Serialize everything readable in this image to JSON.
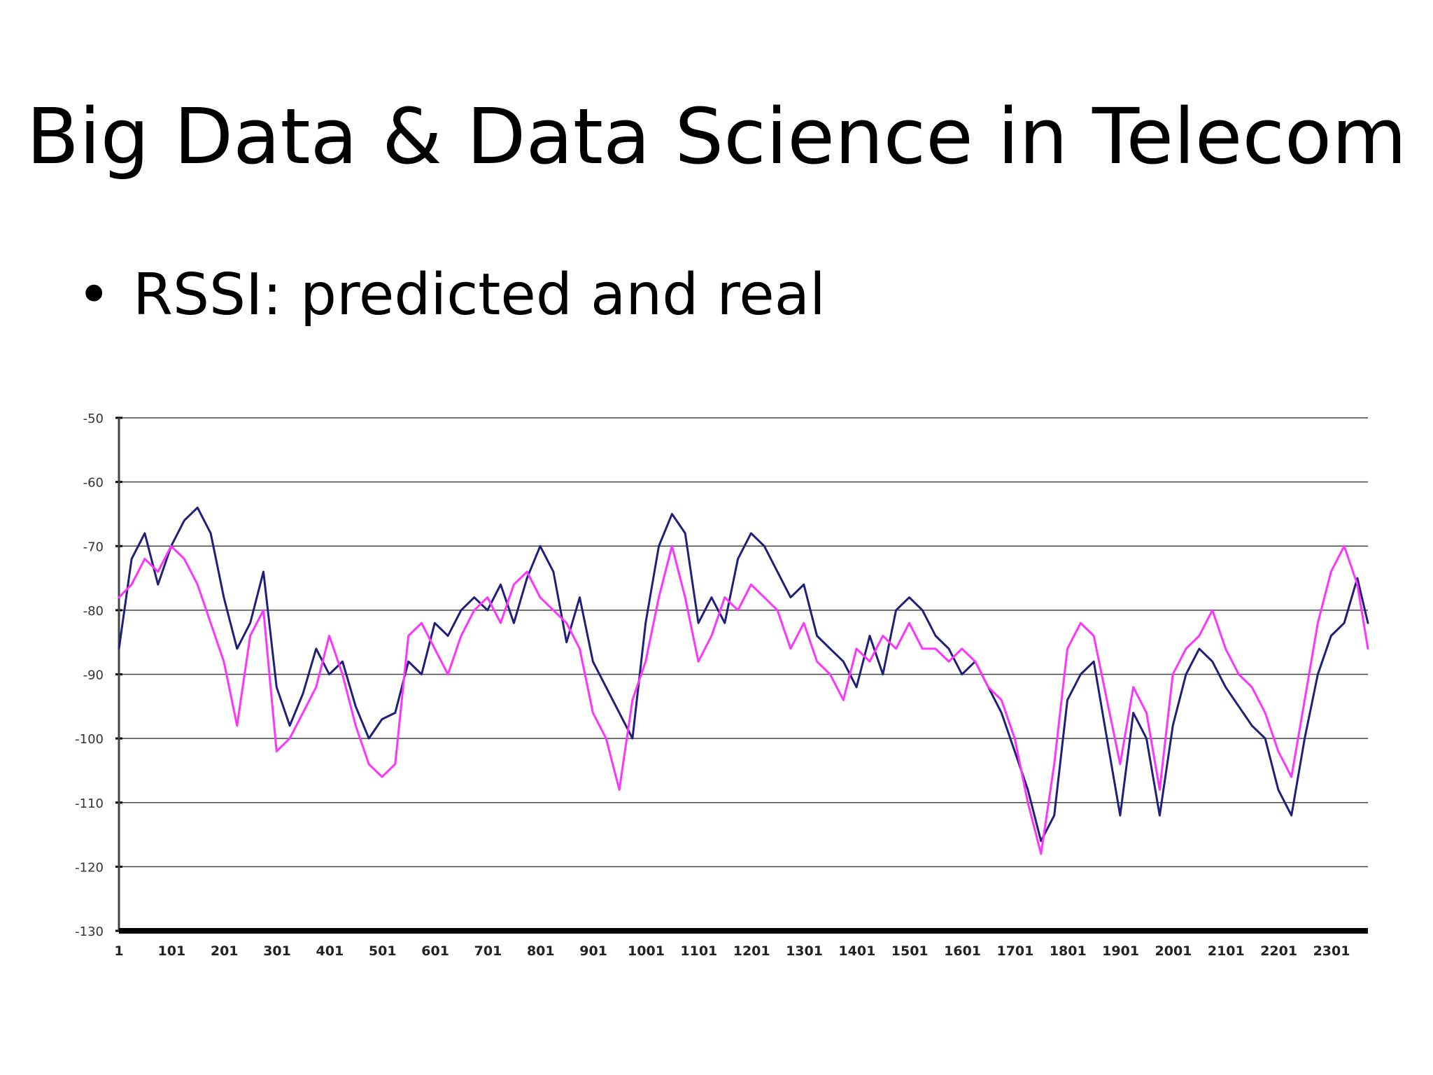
{
  "slide": {
    "title": "Big Data & Data Science in Telecom",
    "bullet_marker": "•",
    "bullet_text": "RSSI: predicted and real"
  },
  "chart_data": {
    "type": "line",
    "title": "",
    "xlabel": "",
    "ylabel": "",
    "ylim": [
      -130,
      -50
    ],
    "xlim": [
      1,
      2370
    ],
    "y_ticks": [
      -50,
      -60,
      -70,
      -80,
      -90,
      -100,
      -110,
      -120,
      -130
    ],
    "x_tick_labels": [
      "1",
      "101",
      "201",
      "301",
      "401",
      "501",
      "601",
      "701",
      "801",
      "901",
      "1001",
      "1101",
      "1201",
      "1301",
      "1401",
      "1501",
      "1601",
      "1701",
      "1801",
      "1901",
      "2001",
      "2101",
      "2201",
      "2301"
    ],
    "grid": true,
    "legend": "none",
    "series": [
      {
        "color": "#1f1f7a",
        "x": [
          1,
          25,
          50,
          75,
          100,
          125,
          150,
          175,
          200,
          225,
          250,
          275,
          300,
          325,
          350,
          375,
          400,
          425,
          450,
          475,
          500,
          525,
          550,
          575,
          600,
          625,
          650,
          675,
          700,
          725,
          750,
          775,
          800,
          825,
          850,
          875,
          900,
          925,
          950,
          975,
          1000,
          1025,
          1050,
          1075,
          1100,
          1125,
          1150,
          1175,
          1200,
          1225,
          1250,
          1275,
          1300,
          1325,
          1350,
          1375,
          1400,
          1425,
          1450,
          1475,
          1500,
          1525,
          1550,
          1575,
          1600,
          1625,
          1650,
          1675,
          1700,
          1725,
          1750,
          1775,
          1800,
          1825,
          1850,
          1875,
          1900,
          1925,
          1950,
          1975,
          2000,
          2025,
          2050,
          2075,
          2100,
          2125,
          2150,
          2175,
          2200,
          2225,
          2250,
          2275,
          2300,
          2325,
          2350,
          2370
        ],
        "y": [
          -86,
          -72,
          -68,
          -76,
          -70,
          -66,
          -64,
          -68,
          -78,
          -86,
          -82,
          -74,
          -92,
          -98,
          -93,
          -86,
          -90,
          -88,
          -95,
          -100,
          -97,
          -96,
          -88,
          -90,
          -82,
          -84,
          -80,
          -78,
          -80,
          -76,
          -82,
          -75,
          -70,
          -74,
          -85,
          -78,
          -88,
          -92,
          -96,
          -100,
          -82,
          -70,
          -65,
          -68,
          -82,
          -78,
          -82,
          -72,
          -68,
          -70,
          -74,
          -78,
          -76,
          -84,
          -86,
          -88,
          -92,
          -84,
          -90,
          -80,
          -78,
          -80,
          -84,
          -86,
          -90,
          -88,
          -92,
          -96,
          -102,
          -108,
          -116,
          -112,
          -94,
          -90,
          -88,
          -100,
          -112,
          -96,
          -100,
          -112,
          -98,
          -90,
          -86,
          -88,
          -92,
          -95,
          -98,
          -100,
          -108,
          -112,
          -100,
          -90,
          -84,
          -82,
          -75,
          -82
        ]
      },
      {
        "color": "#ff33ff",
        "x": [
          1,
          25,
          50,
          75,
          100,
          125,
          150,
          175,
          200,
          225,
          250,
          275,
          300,
          325,
          350,
          375,
          400,
          425,
          450,
          475,
          500,
          525,
          550,
          575,
          600,
          625,
          650,
          675,
          700,
          725,
          750,
          775,
          800,
          825,
          850,
          875,
          900,
          925,
          950,
          975,
          1000,
          1025,
          1050,
          1075,
          1100,
          1125,
          1150,
          1175,
          1200,
          1225,
          1250,
          1275,
          1300,
          1325,
          1350,
          1375,
          1400,
          1425,
          1450,
          1475,
          1500,
          1525,
          1550,
          1575,
          1600,
          1625,
          1650,
          1675,
          1700,
          1725,
          1750,
          1775,
          1800,
          1825,
          1850,
          1875,
          1900,
          1925,
          1950,
          1975,
          2000,
          2025,
          2050,
          2075,
          2100,
          2125,
          2150,
          2175,
          2200,
          2225,
          2250,
          2275,
          2300,
          2325,
          2350,
          2370
        ],
        "y": [
          -78,
          -76,
          -72,
          -74,
          -70,
          -72,
          -76,
          -82,
          -88,
          -98,
          -84,
          -80,
          -102,
          -100,
          -96,
          -92,
          -84,
          -90,
          -98,
          -104,
          -106,
          -104,
          -84,
          -82,
          -86,
          -90,
          -84,
          -80,
          -78,
          -82,
          -76,
          -74,
          -78,
          -80,
          -82,
          -86,
          -96,
          -100,
          -108,
          -94,
          -88,
          -78,
          -70,
          -78,
          -88,
          -84,
          -78,
          -80,
          -76,
          -78,
          -80,
          -86,
          -82,
          -88,
          -90,
          -94,
          -86,
          -88,
          -84,
          -86,
          -82,
          -86,
          -86,
          -88,
          -86,
          -88,
          -92,
          -94,
          -100,
          -110,
          -118,
          -104,
          -86,
          -82,
          -84,
          -94,
          -104,
          -92,
          -96,
          -108,
          -90,
          -86,
          -84,
          -80,
          -86,
          -90,
          -92,
          -96,
          -102,
          -106,
          -94,
          -82,
          -74,
          -70,
          -76,
          -86
        ]
      }
    ]
  }
}
